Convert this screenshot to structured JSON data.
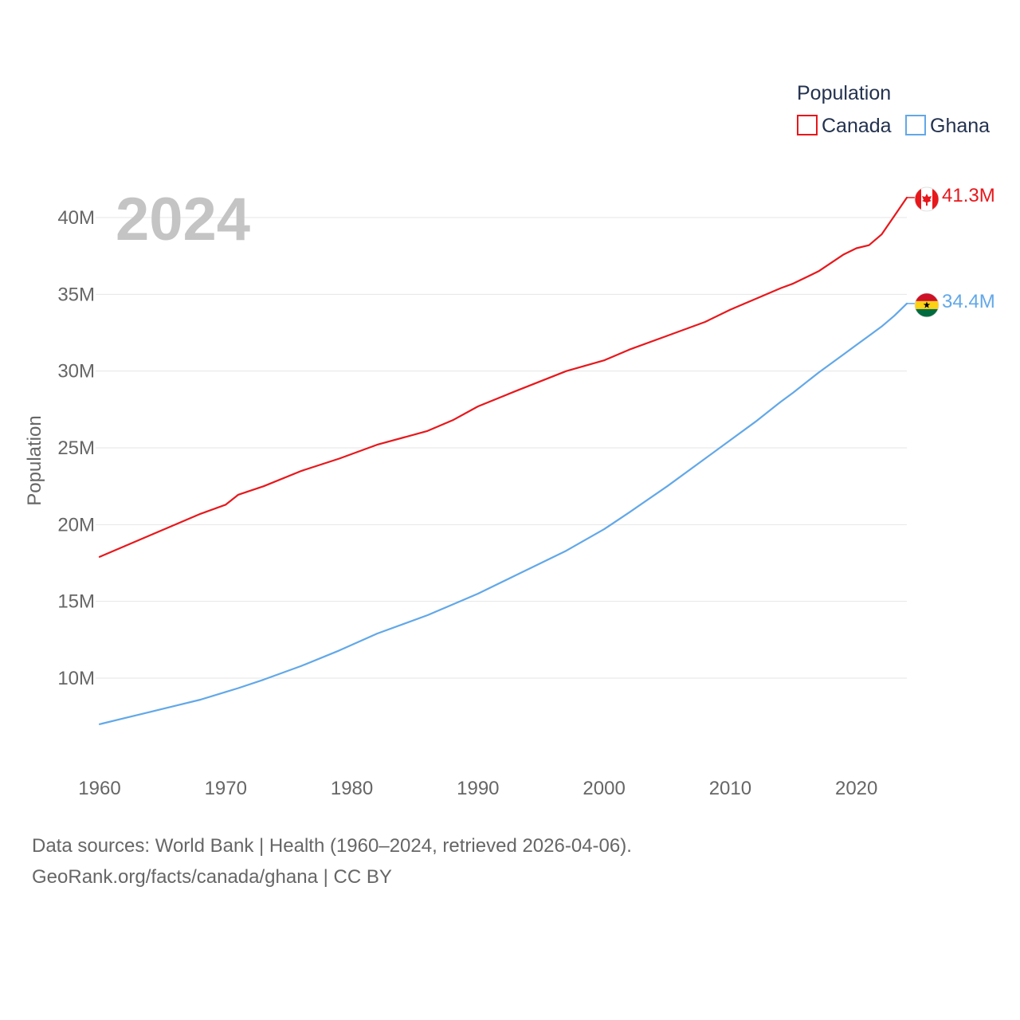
{
  "chart_data": {
    "type": "line",
    "title": "",
    "year_watermark": "2024",
    "xlabel": "",
    "ylabel": "Population",
    "ylim": [
      5000000,
      42500000
    ],
    "xlim": [
      1960,
      2024
    ],
    "y_ticks": [
      {
        "value": 10000000,
        "label": "10M"
      },
      {
        "value": 15000000,
        "label": "15M"
      },
      {
        "value": 20000000,
        "label": "20M"
      },
      {
        "value": 25000000,
        "label": "25M"
      },
      {
        "value": 30000000,
        "label": "30M"
      },
      {
        "value": 35000000,
        "label": "35M"
      },
      {
        "value": 40000000,
        "label": "40M"
      }
    ],
    "x_ticks": [
      {
        "value": 1960,
        "label": "1960"
      },
      {
        "value": 1970,
        "label": "1970"
      },
      {
        "value": 1980,
        "label": "1980"
      },
      {
        "value": 1990,
        "label": "1990"
      },
      {
        "value": 2000,
        "label": "2000"
      },
      {
        "value": 2010,
        "label": "2010"
      },
      {
        "value": 2020,
        "label": "2020"
      }
    ],
    "grid": true,
    "legend": {
      "title": "Population",
      "position": "top-right"
    },
    "x": [
      1960,
      1962,
      1964,
      1966,
      1968,
      1970,
      1971,
      1973,
      1976,
      1979,
      1982,
      1986,
      1988,
      1990,
      1993,
      1997,
      2000,
      2002,
      2005,
      2008,
      2010,
      2012,
      2014,
      2015,
      2017,
      2019,
      2020,
      2021,
      2022,
      2023,
      2024
    ],
    "series": [
      {
        "name": "Canada",
        "color": "#e8171b",
        "end_label": "41.3M",
        "flag": "canada-flag",
        "values": [
          17900000,
          18600000,
          19300000,
          20000000,
          20700000,
          21300000,
          21950000,
          22500000,
          23500000,
          24300000,
          25200000,
          26100000,
          26800000,
          27700000,
          28700000,
          30000000,
          30700000,
          31400000,
          32300000,
          33200000,
          34000000,
          34700000,
          35400000,
          35700000,
          36500000,
          37600000,
          38000000,
          38200000,
          38900000,
          40100000,
          41300000
        ]
      },
      {
        "name": "Ghana",
        "color": "#62a8e8",
        "end_label": "34.4M",
        "flag": "ghana-flag",
        "values": [
          7000000,
          7400000,
          7800000,
          8200000,
          8600000,
          9100000,
          9350000,
          9900000,
          10800000,
          11800000,
          12900000,
          14100000,
          14800000,
          15500000,
          16700000,
          18300000,
          19700000,
          20800000,
          22500000,
          24300000,
          25500000,
          26700000,
          28000000,
          28600000,
          29900000,
          31100000,
          31700000,
          32300000,
          32900000,
          33600000,
          34400000
        ]
      }
    ]
  },
  "footer": {
    "source_line": "Data sources: World Bank | Health (1960–2024, retrieved 2026-04-06).",
    "url_line": "GeoRank.org/facts/canada/ghana | CC BY"
  }
}
